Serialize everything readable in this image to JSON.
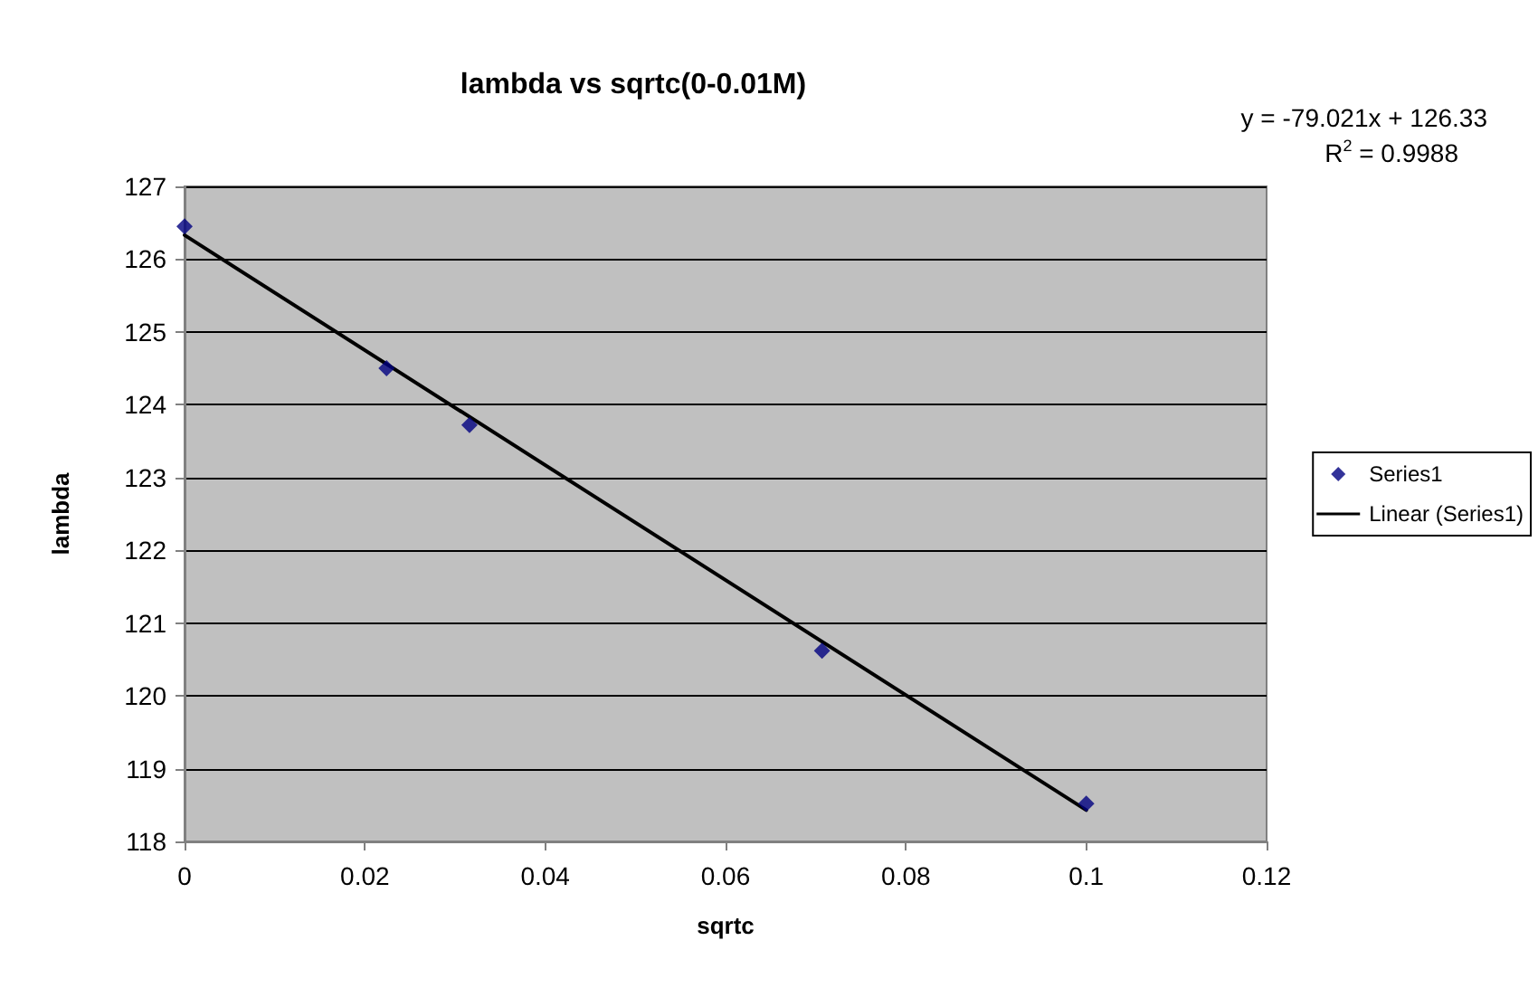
{
  "chart_data": {
    "type": "scatter",
    "title": "lambda vs sqrtc(0-0.01M)",
    "xlabel": "sqrtc",
    "ylabel": "lambda",
    "annotations": [
      "y = -79.021x + 126.33",
      "R$^{2}$ = 0.9988"
    ],
    "x": [
      0,
      0.0224,
      0.0316,
      0.0707,
      0.1
    ],
    "series": [
      {
        "name": "Series1",
        "color": "#000080",
        "values": [
          126.45,
          124.5,
          123.72,
          120.62,
          118.52
        ]
      },
      {
        "name": "Linear (Series1)",
        "type": "line",
        "color": "#000000",
        "x": [
          0,
          0.1
        ],
        "values": [
          126.33,
          118.43
        ],
        "marker": "none",
        "line_style": "solid"
      }
    ],
    "xlim": [
      0,
      0.12
    ],
    "xticks": [
      0,
      0.02,
      0.04,
      0.06,
      0.08,
      0.1,
      0.12
    ],
    "ylim": [
      118,
      127
    ],
    "yticks": [
      118,
      119,
      120,
      121,
      122,
      123,
      124,
      125,
      126,
      127
    ],
    "grid": "y",
    "legend": "right",
    "marker": "diamond"
  }
}
